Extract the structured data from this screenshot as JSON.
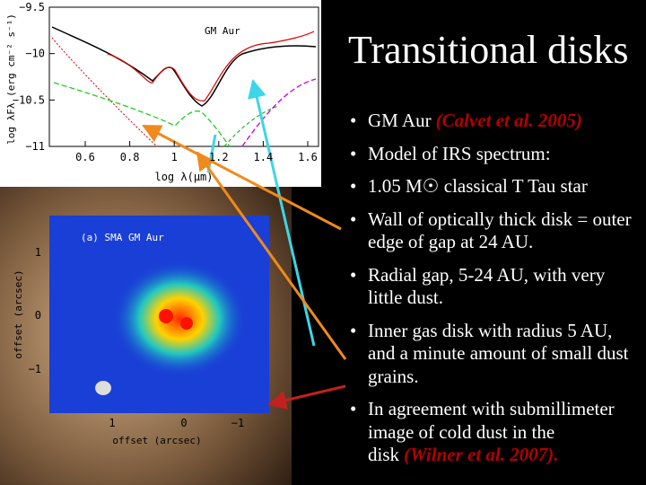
{
  "slide": {
    "title": "Transitional disks",
    "bullets": [
      {
        "text": "GM Aur",
        "citation": "(Calvet et al. 2005)"
      },
      {
        "text": "Model of IRS spectrum:"
      },
      {
        "text": "1.05 M☉ classical T Tau star"
      },
      {
        "text": "Wall of optically thick disk = outer edge of gap at 24 AU."
      },
      {
        "text": "Radial gap, 5-24 AU, with very little dust."
      },
      {
        "text": "Inner gas disk with radius 5 AU, and a minute amount of small dust grains."
      },
      {
        "text": "In agreement with submillimeter image of cold dust in the disk",
        "citation": "(Wilner et al. 2007)."
      }
    ]
  },
  "sed_plot": {
    "label": "GM Aur",
    "y_axis_label": "log λFλ (erg cm⁻² s⁻¹)",
    "x_axis_label": "log λ(μm)",
    "yticks": [
      "−9.5",
      "−10",
      "−10.5",
      "−11"
    ],
    "xticks": [
      "0.6",
      "0.8",
      "1",
      "1.2",
      "1.4",
      "1.6"
    ]
  },
  "sma_image": {
    "label": "(a) SMA GM Aur",
    "x_axis_label": "offset (arcsec)",
    "y_axis_label": "offset (arcsec)",
    "xticks": [
      "1",
      "0",
      "−1"
    ],
    "yticks": [
      "1",
      "0",
      "−1"
    ]
  }
}
